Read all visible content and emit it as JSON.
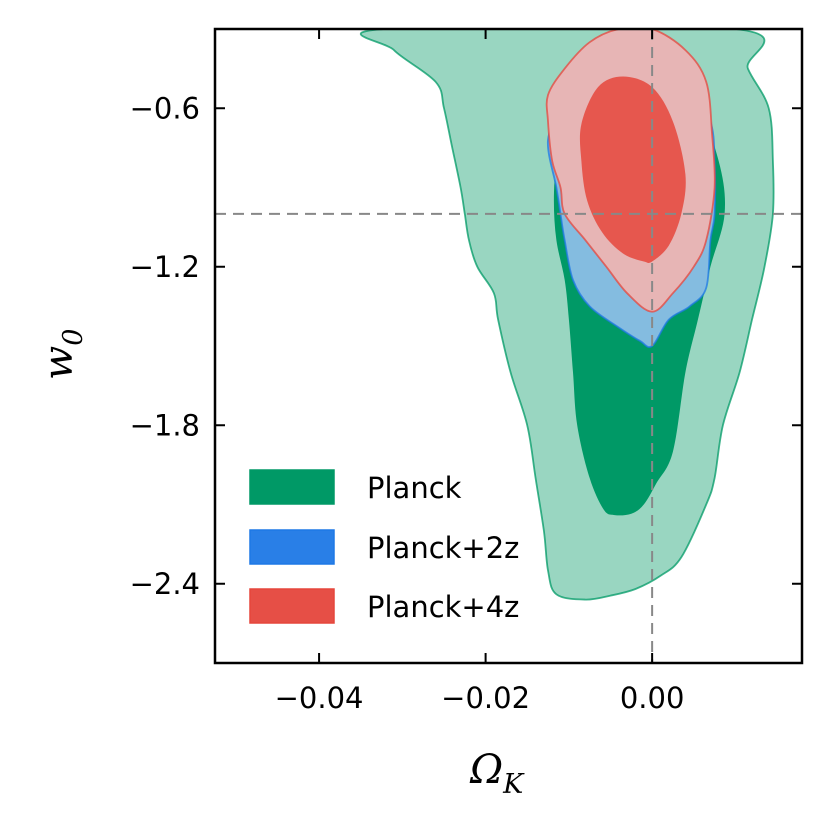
{
  "chart_data": {
    "type": "contour",
    "xlabel": "Ω",
    "xlabel_sub": "K",
    "ylabel": "w",
    "ylabel_sub": "0",
    "xlim": [
      -0.0525,
      0.018
    ],
    "ylim": [
      -2.7,
      -0.3
    ],
    "xticks": [
      {
        "value": -0.04,
        "label": "−0.04"
      },
      {
        "value": -0.02,
        "label": "−0.02"
      },
      {
        "value": 0.0,
        "label": "0.00"
      }
    ],
    "yticks": [
      {
        "value": -0.6,
        "label": "−0.6"
      },
      {
        "value": -1.2,
        "label": "−1.2"
      },
      {
        "value": -1.8,
        "label": "−1.8"
      },
      {
        "value": -2.4,
        "label": "−2.4"
      }
    ],
    "reference_lines": {
      "x": 0.0,
      "y": -1.0,
      "style": "dashed",
      "color": "#888888"
    },
    "legend_position": "lower-left",
    "series": [
      {
        "name": "Planck",
        "color": "#009966",
        "light_color": "#99d6c1",
        "contours": {
          "sigma2": [
            [
              -0.032,
              -0.3
            ],
            [
              -0.031,
              -0.38
            ],
            [
              -0.026,
              -0.5
            ],
            [
              -0.025,
              -0.6
            ],
            [
              -0.024,
              -0.75
            ],
            [
              -0.023,
              -0.9
            ],
            [
              -0.0225,
              -1.0
            ],
            [
              -0.022,
              -1.1
            ],
            [
              -0.021,
              -1.2
            ],
            [
              -0.019,
              -1.3
            ],
            [
              -0.0185,
              -1.4
            ],
            [
              -0.017,
              -1.6
            ],
            [
              -0.015,
              -1.8
            ],
            [
              -0.014,
              -2.0
            ],
            [
              -0.013,
              -2.2
            ],
            [
              -0.0125,
              -2.35
            ],
            [
              -0.0115,
              -2.44
            ],
            [
              -0.008,
              -2.46
            ],
            [
              -0.005,
              -2.445
            ],
            [
              -0.002,
              -2.42
            ],
            [
              0.001,
              -2.37
            ],
            [
              0.0035,
              -2.3
            ],
            [
              0.0065,
              -2.1
            ],
            [
              0.0075,
              -2.0
            ],
            [
              0.0085,
              -1.8
            ],
            [
              0.0105,
              -1.6
            ],
            [
              0.012,
              -1.4
            ],
            [
              0.0135,
              -1.2
            ],
            [
              0.0145,
              -1.0
            ],
            [
              0.0145,
              -0.8
            ],
            [
              0.014,
              -0.6
            ],
            [
              0.0115,
              -0.45
            ],
            [
              0.01,
              -0.3
            ]
          ],
          "sigma1": [
            [
              -0.009,
              -0.4
            ],
            [
              -0.0105,
              -0.6
            ],
            [
              -0.0115,
              -0.8
            ],
            [
              -0.0118,
              -0.95
            ],
            [
              -0.0115,
              -1.1
            ],
            [
              -0.0105,
              -1.25
            ],
            [
              -0.01,
              -1.4
            ],
            [
              -0.0095,
              -1.6
            ],
            [
              -0.009,
              -1.8
            ],
            [
              -0.0075,
              -2.0
            ],
            [
              -0.0058,
              -2.12
            ],
            [
              -0.0045,
              -2.14
            ],
            [
              -0.0025,
              -2.135
            ],
            [
              -0.001,
              -2.1
            ],
            [
              0.0005,
              -2.02
            ],
            [
              0.0025,
              -1.9
            ],
            [
              0.004,
              -1.6
            ],
            [
              0.0055,
              -1.4
            ],
            [
              0.007,
              -1.2
            ],
            [
              0.0087,
              -1.0
            ],
            [
              0.008,
              -0.8
            ],
            [
              0.005,
              -0.55
            ],
            [
              0.001,
              -0.38
            ],
            [
              -0.004,
              -0.37
            ]
          ]
        }
      },
      {
        "name": "Planck+2z",
        "color": "#1e78e6",
        "light_color": "#84bce0",
        "contours": {
          "sigma2": [
            [
              -0.0125,
              -0.72
            ],
            [
              -0.0115,
              -0.9
            ],
            [
              -0.011,
              -1.0
            ],
            [
              -0.0105,
              -1.1
            ],
            [
              -0.0095,
              -1.25
            ],
            [
              -0.0075,
              -1.35
            ],
            [
              -0.004,
              -1.43
            ],
            [
              -0.0015,
              -1.48
            ],
            [
              0.0,
              -1.5
            ],
            [
              0.002,
              -1.4
            ],
            [
              0.0045,
              -1.35
            ],
            [
              0.0065,
              -1.28
            ],
            [
              0.007,
              -1.1
            ],
            [
              0.0075,
              -1.0
            ],
            [
              0.0075,
              -0.8
            ],
            [
              0.007,
              -0.65
            ],
            [
              0.0045,
              -0.5
            ],
            [
              0.001,
              -0.43
            ],
            [
              -0.003,
              -0.44
            ],
            [
              -0.007,
              -0.5
            ],
            [
              -0.0105,
              -0.6
            ]
          ]
        }
      },
      {
        "name": "Planck+4z",
        "color": "#e5463c",
        "light_color": "#e7b5b5",
        "contours": {
          "sigma2": [
            [
              -0.0125,
              -0.65
            ],
            [
              -0.012,
              -0.8
            ],
            [
              -0.011,
              -0.9
            ],
            [
              -0.0105,
              -1.0
            ],
            [
              -0.008,
              -1.1
            ],
            [
              -0.0055,
              -1.2
            ],
            [
              -0.003,
              -1.3
            ],
            [
              0.0,
              -1.37
            ],
            [
              0.0025,
              -1.3
            ],
            [
              0.005,
              -1.2
            ],
            [
              0.0065,
              -1.1
            ],
            [
              0.0075,
              -0.9
            ],
            [
              0.0072,
              -0.7
            ],
            [
              0.0065,
              -0.5
            ],
            [
              0.004,
              -0.38
            ],
            [
              0.0,
              -0.3
            ],
            [
              -0.004,
              -0.3
            ],
            [
              -0.0075,
              -0.35
            ],
            [
              -0.0105,
              -0.45
            ],
            [
              -0.0125,
              -0.55
            ]
          ],
          "sigma1": [
            [
              -0.0085,
              -0.66
            ],
            [
              -0.0085,
              -0.8
            ],
            [
              -0.0078,
              -0.95
            ],
            [
              -0.006,
              -1.07
            ],
            [
              -0.0035,
              -1.15
            ],
            [
              -0.001,
              -1.18
            ],
            [
              0.0,
              -1.18
            ],
            [
              0.002,
              -1.12
            ],
            [
              0.0035,
              -1.0
            ],
            [
              0.004,
              -0.85
            ],
            [
              0.0025,
              -0.65
            ],
            [
              0.0,
              -0.52
            ],
            [
              -0.0035,
              -0.48
            ],
            [
              -0.0065,
              -0.52
            ]
          ]
        }
      }
    ]
  }
}
